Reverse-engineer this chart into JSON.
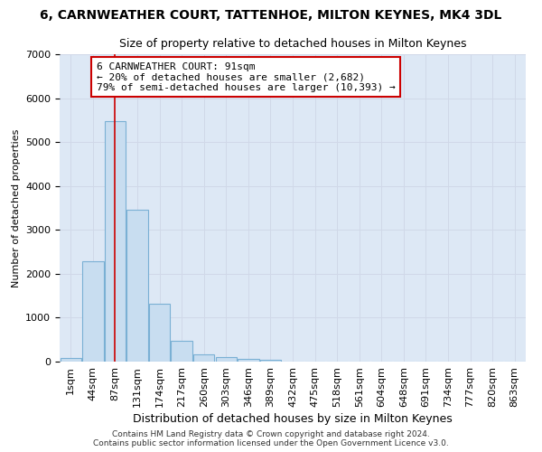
{
  "title": "6, CARNWEATHER COURT, TATTENHOE, MILTON KEYNES, MK4 3DL",
  "subtitle": "Size of property relative to detached houses in Milton Keynes",
  "xlabel": "Distribution of detached houses by size in Milton Keynes",
  "ylabel": "Number of detached properties",
  "footer_line1": "Contains HM Land Registry data © Crown copyright and database right 2024.",
  "footer_line2": "Contains public sector information licensed under the Open Government Licence v3.0.",
  "bin_labels": [
    "1sqm",
    "44sqm",
    "87sqm",
    "131sqm",
    "174sqm",
    "217sqm",
    "260sqm",
    "303sqm",
    "346sqm",
    "389sqm",
    "432sqm",
    "475sqm",
    "518sqm",
    "561sqm",
    "604sqm",
    "648sqm",
    "691sqm",
    "734sqm",
    "777sqm",
    "820sqm",
    "863sqm"
  ],
  "bar_values": [
    75,
    2280,
    5480,
    3450,
    1320,
    470,
    155,
    100,
    70,
    40,
    8,
    0,
    0,
    0,
    0,
    0,
    0,
    0,
    0,
    0,
    0
  ],
  "bar_color": "#c8ddf0",
  "bar_edge_color": "#7ab0d4",
  "vline_color": "#cc0000",
  "vline_x_bin": 2,
  "annotation_line1": "6 CARNWEATHER COURT: 91sqm",
  "annotation_line2": "← 20% of detached houses are smaller (2,682)",
  "annotation_line3": "79% of semi-detached houses are larger (10,393) →",
  "annotation_box_color": "#ffffff",
  "annotation_box_edgecolor": "#cc0000",
  "ylim": [
    0,
    7000
  ],
  "yticks": [
    0,
    1000,
    2000,
    3000,
    4000,
    5000,
    6000,
    7000
  ],
  "grid_color": "#d0d8e8",
  "plot_bg_color": "#dde8f5",
  "fig_bg_color": "#ffffff",
  "title_fontsize": 10,
  "subtitle_fontsize": 9,
  "xlabel_fontsize": 9,
  "ylabel_fontsize": 8,
  "tick_fontsize": 8,
  "footer_fontsize": 6.5,
  "annotation_fontsize": 8
}
